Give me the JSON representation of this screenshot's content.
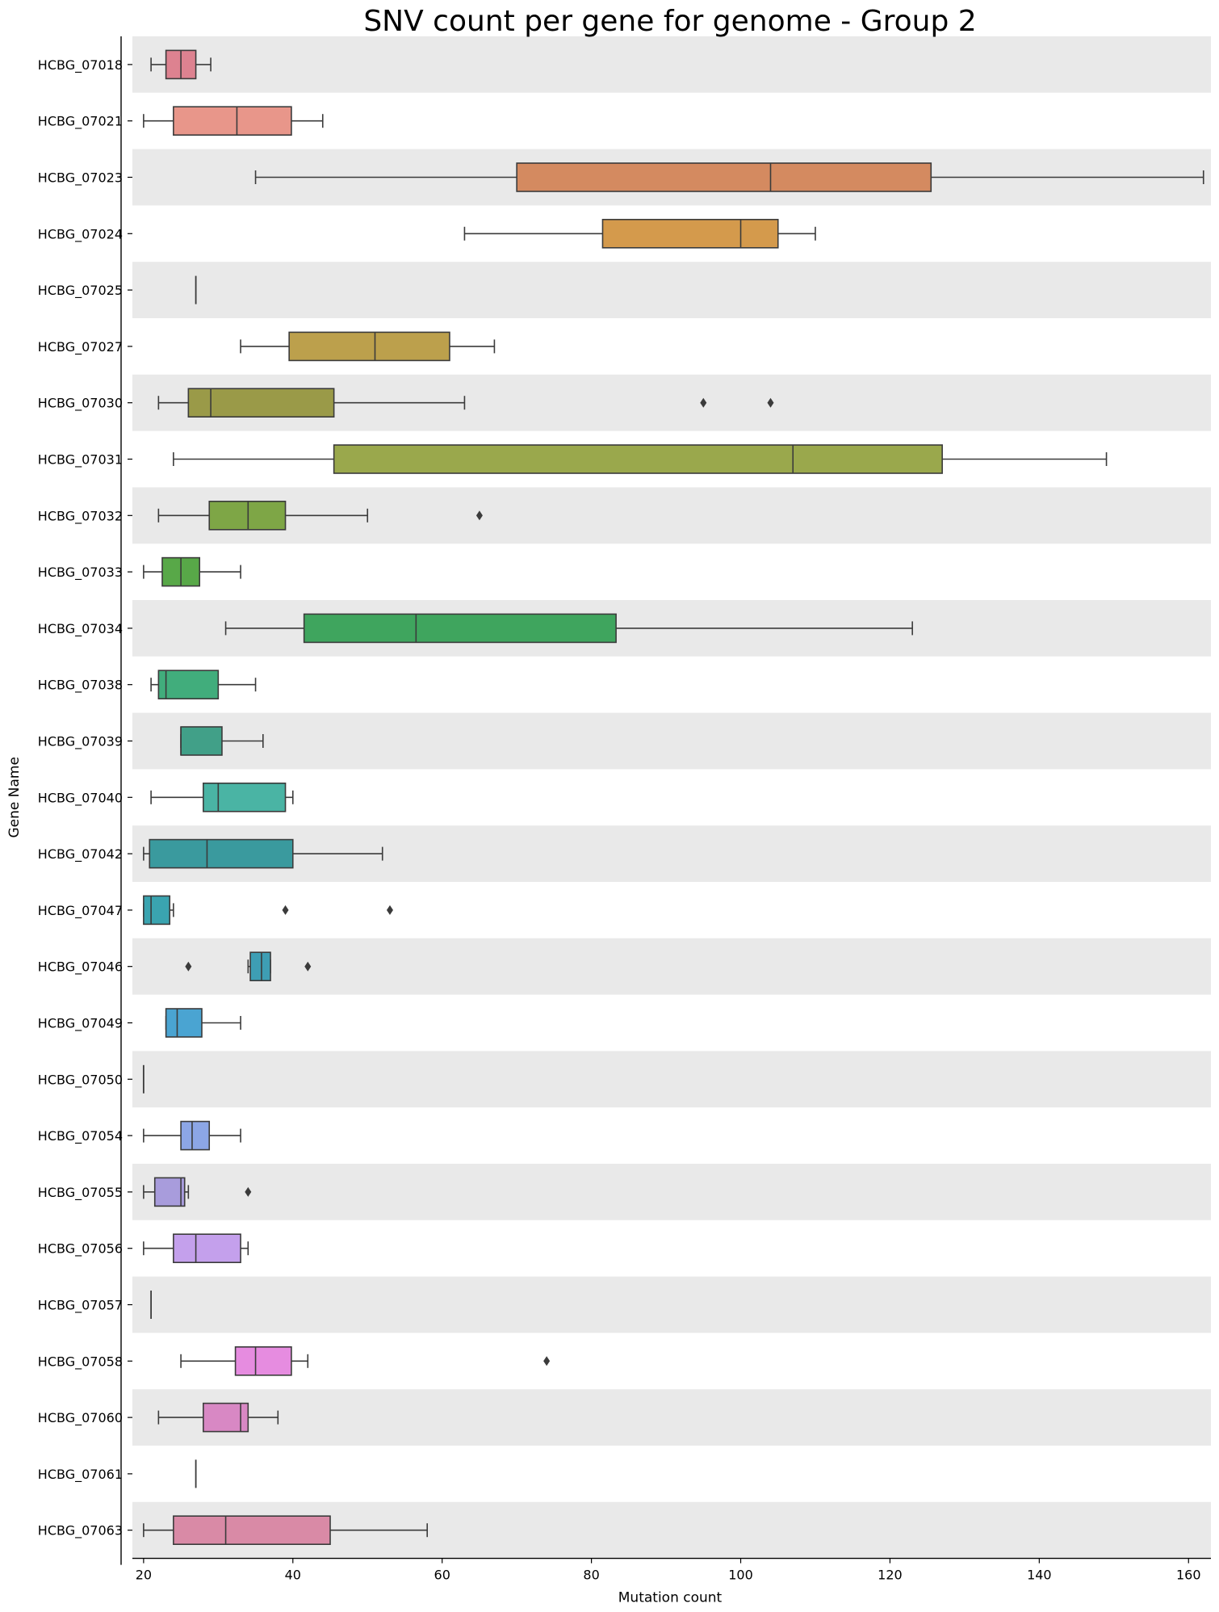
{
  "chart_data": {
    "type": "boxplot",
    "orientation": "horizontal",
    "title": "SNV count per gene for genome - Group 2",
    "xlabel": "Mutation count",
    "ylabel": "Gene Name",
    "xlim": [
      18.5,
      163
    ],
    "xticks": [
      20,
      40,
      60,
      80,
      100,
      120,
      140,
      160
    ],
    "row_shading": "alternating-gray",
    "grid": false,
    "categories": [
      "HCBG_07018",
      "HCBG_07021",
      "HCBG_07023",
      "HCBG_07024",
      "HCBG_07025",
      "HCBG_07027",
      "HCBG_07030",
      "HCBG_07031",
      "HCBG_07032",
      "HCBG_07033",
      "HCBG_07034",
      "HCBG_07038",
      "HCBG_07039",
      "HCBG_07040",
      "HCBG_07042",
      "HCBG_07047",
      "HCBG_07046",
      "HCBG_07049",
      "HCBG_07050",
      "HCBG_07054",
      "HCBG_07055",
      "HCBG_07056",
      "HCBG_07057",
      "HCBG_07058",
      "HCBG_07060",
      "HCBG_07061",
      "HCBG_07063"
    ],
    "boxes": [
      {
        "min": 21,
        "q1": 23,
        "median": 25,
        "q3": 27,
        "max": 29,
        "outliers": [],
        "color": "#dd8290"
      },
      {
        "min": 20,
        "q1": 24,
        "median": 32.5,
        "q3": 39.8,
        "max": 44,
        "outliers": [],
        "color": "#e8968a"
      },
      {
        "min": 35,
        "q1": 70,
        "median": 104,
        "q3": 125.5,
        "max": 162,
        "outliers": [],
        "color": "#d48a60"
      },
      {
        "min": 63,
        "q1": 81.5,
        "median": 100,
        "q3": 105,
        "max": 110,
        "outliers": [],
        "color": "#d49a4c"
      },
      {
        "min": 27,
        "q1": 27,
        "median": 27,
        "q3": 27,
        "max": 27,
        "outliers": [],
        "color": "#c4a04a"
      },
      {
        "min": 33,
        "q1": 39.5,
        "median": 51,
        "q3": 61,
        "max": 67,
        "outliers": [],
        "color": "#bca04c"
      },
      {
        "min": 22,
        "q1": 26,
        "median": 29,
        "q3": 45.5,
        "max": 63,
        "outliers": [
          95,
          104
        ],
        "color": "#9a9a48"
      },
      {
        "min": 24,
        "q1": 45.5,
        "median": 107,
        "q3": 127,
        "max": 149,
        "outliers": [],
        "color": "#9aa84c"
      },
      {
        "min": 22,
        "q1": 28.8,
        "median": 34,
        "q3": 39,
        "max": 50,
        "outliers": [
          65
        ],
        "color": "#7ea646"
      },
      {
        "min": 20,
        "q1": 22.5,
        "median": 25,
        "q3": 27.5,
        "max": 33,
        "outliers": [],
        "color": "#58a848"
      },
      {
        "min": 31,
        "q1": 41.5,
        "median": 56.5,
        "q3": 83.3,
        "max": 123,
        "outliers": [],
        "color": "#3fa55e"
      },
      {
        "min": 21,
        "q1": 22,
        "median": 23,
        "q3": 30,
        "max": 35,
        "outliers": [],
        "color": "#41ad7c"
      },
      {
        "min": 25,
        "q1": 25,
        "median": 25,
        "q3": 30.5,
        "max": 36,
        "outliers": [],
        "color": "#41a088"
      },
      {
        "min": 21,
        "q1": 28,
        "median": 30,
        "q3": 39,
        "max": 40,
        "outliers": [],
        "color": "#4ab4a4"
      },
      {
        "min": 20,
        "q1": 20.8,
        "median": 28.5,
        "q3": 40,
        "max": 52,
        "outliers": [],
        "color": "#3a9a9e"
      },
      {
        "min": 20,
        "q1": 20,
        "median": 21,
        "q3": 23.5,
        "max": 24,
        "outliers": [
          39,
          53
        ],
        "color": "#3aa4b0"
      },
      {
        "min": 34,
        "q1": 34.3,
        "median": 35.8,
        "q3": 37,
        "max": 37,
        "outliers": [
          26,
          42
        ],
        "color": "#3e9eb4"
      },
      {
        "min": 23,
        "q1": 23,
        "median": 24.5,
        "q3": 27.8,
        "max": 33,
        "outliers": [],
        "color": "#4aa4d2"
      },
      {
        "min": 20,
        "q1": 20,
        "median": 20,
        "q3": 20,
        "max": 20,
        "outliers": [],
        "color": "#5a9ad6"
      },
      {
        "min": 20,
        "q1": 25,
        "median": 26.5,
        "q3": 28.8,
        "max": 33,
        "outliers": [],
        "color": "#8ca6e6"
      },
      {
        "min": 20,
        "q1": 21.5,
        "median": 25,
        "q3": 25.5,
        "max": 26,
        "outliers": [
          34
        ],
        "color": "#a89cdc"
      },
      {
        "min": 20,
        "q1": 24,
        "median": 27,
        "q3": 33,
        "max": 34,
        "outliers": [],
        "color": "#c4a0ec"
      },
      {
        "min": 21,
        "q1": 21,
        "median": 21,
        "q3": 21,
        "max": 21,
        "outliers": [],
        "color": "#d79ae6"
      },
      {
        "min": 25,
        "q1": 32.3,
        "median": 35,
        "q3": 39.8,
        "max": 42,
        "outliers": [
          74
        ],
        "color": "#e68ce0"
      },
      {
        "min": 22,
        "q1": 28,
        "median": 33,
        "q3": 34,
        "max": 38,
        "outliers": [],
        "color": "#d888c4"
      },
      {
        "min": 27,
        "q1": 27,
        "median": 27,
        "q3": 27,
        "max": 27,
        "outliers": [],
        "color": "#dc8ab4"
      },
      {
        "min": 20,
        "q1": 24,
        "median": 31,
        "q3": 45,
        "max": 58,
        "outliers": [],
        "color": "#d98aa6"
      }
    ]
  }
}
